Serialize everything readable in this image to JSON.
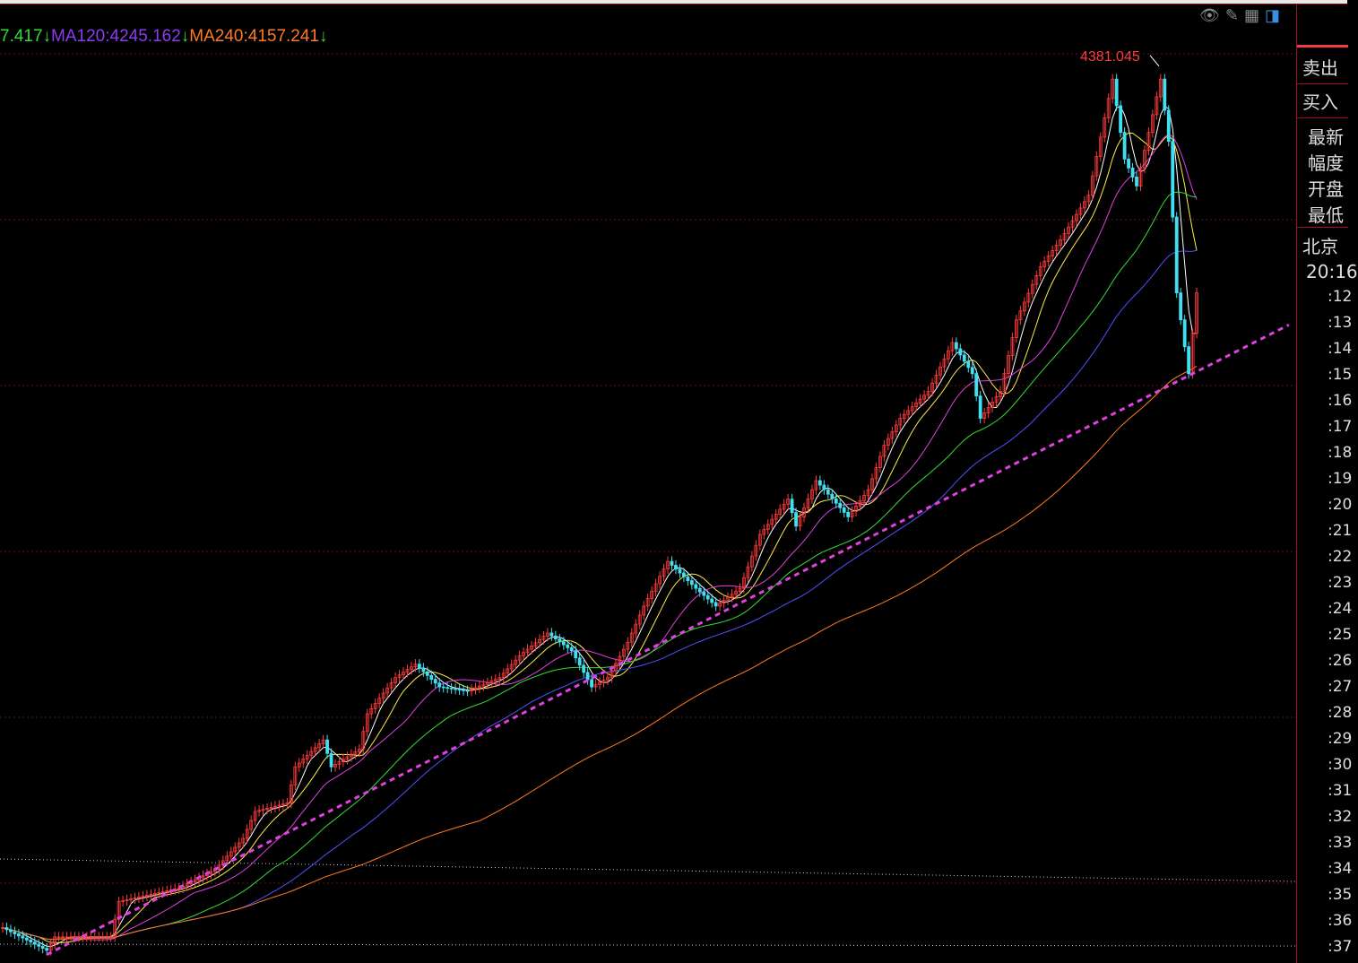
{
  "legend": [
    {
      "text": "7.417",
      "color": "#33dd33",
      "arrow": "↓"
    },
    {
      "text": "MA120:4245.162",
      "color": "#8a3cf0",
      "arrow": "↓"
    },
    {
      "text": "MA240:4157.241",
      "color": "#ff7a22",
      "arrow": "↓"
    }
  ],
  "toolbar": {
    "icons": [
      "eye-hidden-icon",
      "pencil-icon",
      "grid-icon",
      "panel-toggle-icon"
    ]
  },
  "chart_data": {
    "type": "candlestick",
    "title": "",
    "ylim": [
      3320,
      4400
    ],
    "x": [
      0,
      11,
      13,
      27,
      29,
      44,
      53,
      60,
      63,
      71,
      73,
      80,
      82,
      89,
      91,
      98,
      103,
      109,
      116,
      124,
      129,
      136,
      142,
      147,
      151,
      156,
      160,
      166,
      173,
      178,
      184,
      189,
      196,
      198,
      203,
      211,
      216,
      220,
      224,
      231,
      237,
      242,
      244,
      249,
      253,
      259,
      264,
      271,
      277,
      280,
      283,
      289,
      291,
      293,
      296,
      298
    ],
    "close": [
      3362,
      3335,
      3351,
      3351,
      3393,
      3409,
      3431,
      3468,
      3500,
      3510,
      3553,
      3585,
      3553,
      3574,
      3616,
      3659,
      3675,
      3648,
      3643,
      3659,
      3685,
      3712,
      3691,
      3648,
      3659,
      3701,
      3744,
      3797,
      3765,
      3744,
      3765,
      3829,
      3871,
      3839,
      3893,
      3850,
      3882,
      3935,
      3967,
      3999,
      4057,
      4020,
      3967,
      3999,
      4084,
      4147,
      4179,
      4232,
      4370,
      4275,
      4243,
      4370,
      4296,
      4116,
      4020,
      4116
    ],
    "high_annotation": {
      "label": "4381.045",
      "value": 4381.045,
      "color": "#ff3b3b"
    },
    "moving_averages": [
      {
        "name": "MA120",
        "value": 4245.162,
        "color": "#8a3cf0"
      },
      {
        "name": "MA240",
        "value": 4157.241,
        "color": "#ff7a22"
      }
    ],
    "trendline": {
      "from": [
        11,
        3330
      ],
      "to": [
        321,
        4078
      ],
      "color": "#e040e0",
      "style": "dashed"
    },
    "grid": true,
    "colors": {
      "up": "#ff3b3b",
      "down": "#40e0f0",
      "grid": "#6a1020"
    }
  },
  "panel": {
    "rows": [
      "卖出",
      "买入",
      "最新",
      "幅度",
      "开盘",
      "最低",
      "北京"
    ],
    "time": "20:16",
    "ticks": [
      ":12",
      ":13",
      ":14",
      ":15",
      ":16",
      ":17",
      ":18",
      ":19",
      ":20",
      ":21",
      ":22",
      ":23",
      ":24",
      ":25",
      ":26",
      ":27",
      ":28",
      ":29",
      ":30",
      ":31",
      ":32",
      ":33",
      ":34",
      ":35",
      ":36",
      ":37"
    ]
  }
}
